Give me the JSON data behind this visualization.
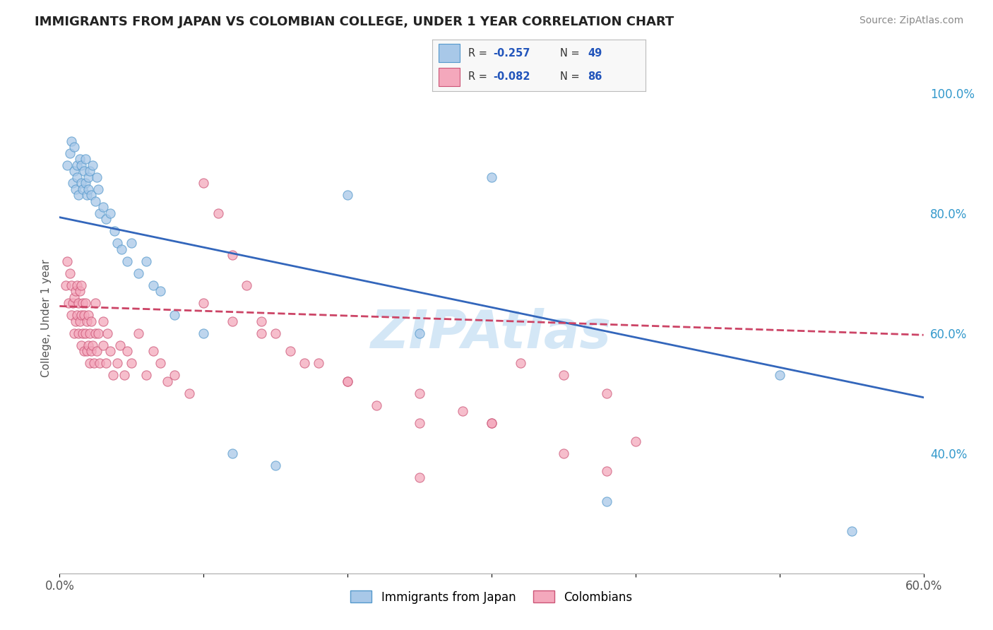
{
  "title": "IMMIGRANTS FROM JAPAN VS COLOMBIAN COLLEGE, UNDER 1 YEAR CORRELATION CHART",
  "source": "Source: ZipAtlas.com",
  "ylabel": "College, Under 1 year",
  "xlim": [
    0.0,
    0.6
  ],
  "ylim": [
    0.2,
    1.05
  ],
  "x_ticks": [
    0.0,
    0.1,
    0.2,
    0.3,
    0.4,
    0.5,
    0.6
  ],
  "x_tick_labels": [
    "0.0%",
    "",
    "",
    "",
    "",
    "",
    "60.0%"
  ],
  "y_ticks_right": [
    0.4,
    0.6,
    0.8,
    1.0
  ],
  "y_tick_labels_right": [
    "40.0%",
    "60.0%",
    "80.0%",
    "100.0%"
  ],
  "legend_label1": "Immigrants from Japan",
  "legend_label2": "Colombians",
  "R1": -0.257,
  "N1": 49,
  "R2": -0.082,
  "N2": 86,
  "color1": "#a8c8e8",
  "color2": "#f4a8bc",
  "edge_color1": "#5599cc",
  "edge_color2": "#cc5577",
  "line_color1": "#3366bb",
  "line_color2": "#cc4466",
  "background_color": "#ffffff",
  "grid_color": "#cccccc",
  "watermark_color": "#b8d8f0",
  "japan_x": [
    0.005,
    0.007,
    0.008,
    0.009,
    0.01,
    0.01,
    0.011,
    0.012,
    0.012,
    0.013,
    0.014,
    0.015,
    0.015,
    0.016,
    0.017,
    0.018,
    0.018,
    0.019,
    0.02,
    0.02,
    0.021,
    0.022,
    0.023,
    0.025,
    0.026,
    0.027,
    0.028,
    0.03,
    0.032,
    0.035,
    0.038,
    0.04,
    0.043,
    0.047,
    0.05,
    0.055,
    0.06,
    0.065,
    0.07,
    0.08,
    0.1,
    0.12,
    0.15,
    0.2,
    0.25,
    0.3,
    0.38,
    0.5,
    0.55
  ],
  "japan_y": [
    0.88,
    0.9,
    0.92,
    0.85,
    0.87,
    0.91,
    0.84,
    0.86,
    0.88,
    0.83,
    0.89,
    0.85,
    0.88,
    0.84,
    0.87,
    0.85,
    0.89,
    0.83,
    0.86,
    0.84,
    0.87,
    0.83,
    0.88,
    0.82,
    0.86,
    0.84,
    0.8,
    0.81,
    0.79,
    0.8,
    0.77,
    0.75,
    0.74,
    0.72,
    0.75,
    0.7,
    0.72,
    0.68,
    0.67,
    0.63,
    0.6,
    0.4,
    0.38,
    0.83,
    0.6,
    0.86,
    0.32,
    0.53,
    0.27
  ],
  "japan_trendline": [
    0.793,
    -0.5
  ],
  "colombia_x": [
    0.004,
    0.005,
    0.006,
    0.007,
    0.008,
    0.008,
    0.009,
    0.01,
    0.01,
    0.011,
    0.011,
    0.012,
    0.012,
    0.013,
    0.013,
    0.014,
    0.014,
    0.015,
    0.015,
    0.015,
    0.016,
    0.016,
    0.017,
    0.017,
    0.018,
    0.018,
    0.019,
    0.019,
    0.02,
    0.02,
    0.021,
    0.021,
    0.022,
    0.022,
    0.023,
    0.024,
    0.025,
    0.025,
    0.026,
    0.027,
    0.028,
    0.03,
    0.03,
    0.032,
    0.033,
    0.035,
    0.037,
    0.04,
    0.042,
    0.045,
    0.047,
    0.05,
    0.055,
    0.06,
    0.065,
    0.07,
    0.075,
    0.08,
    0.09,
    0.1,
    0.11,
    0.12,
    0.13,
    0.14,
    0.15,
    0.17,
    0.2,
    0.22,
    0.25,
    0.28,
    0.3,
    0.32,
    0.35,
    0.38,
    0.4,
    0.1,
    0.12,
    0.14,
    0.16,
    0.18,
    0.2,
    0.25,
    0.3,
    0.35,
    0.38,
    0.25
  ],
  "colombia_y": [
    0.68,
    0.72,
    0.65,
    0.7,
    0.63,
    0.68,
    0.65,
    0.6,
    0.66,
    0.62,
    0.67,
    0.63,
    0.68,
    0.6,
    0.65,
    0.62,
    0.67,
    0.58,
    0.63,
    0.68,
    0.6,
    0.65,
    0.57,
    0.63,
    0.6,
    0.65,
    0.57,
    0.62,
    0.58,
    0.63,
    0.55,
    0.6,
    0.57,
    0.62,
    0.58,
    0.55,
    0.6,
    0.65,
    0.57,
    0.6,
    0.55,
    0.62,
    0.58,
    0.55,
    0.6,
    0.57,
    0.53,
    0.55,
    0.58,
    0.53,
    0.57,
    0.55,
    0.6,
    0.53,
    0.57,
    0.55,
    0.52,
    0.53,
    0.5,
    0.85,
    0.8,
    0.73,
    0.68,
    0.62,
    0.6,
    0.55,
    0.52,
    0.48,
    0.5,
    0.47,
    0.45,
    0.55,
    0.53,
    0.5,
    0.42,
    0.65,
    0.62,
    0.6,
    0.57,
    0.55,
    0.52,
    0.45,
    0.45,
    0.4,
    0.37,
    0.36
  ],
  "colombia_trendline": [
    0.645,
    -0.08
  ]
}
